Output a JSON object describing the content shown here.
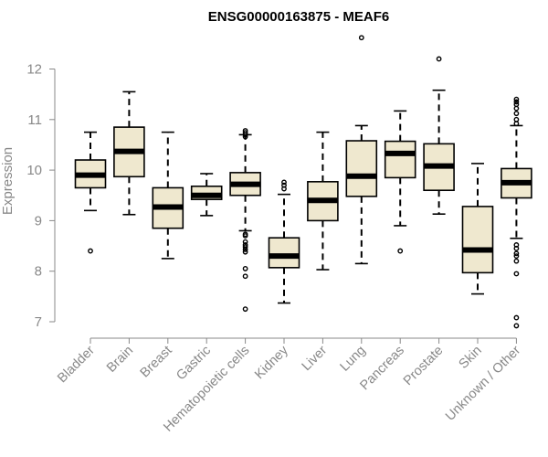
{
  "chart_data": {
    "type": "boxplot",
    "title": "ENSG00000163875 - MEAF6",
    "xlabel": "",
    "ylabel": "Expression",
    "ylim": [
      6.8,
      12.8
    ],
    "yticks": [
      7,
      8,
      9,
      10,
      11,
      12
    ],
    "categories": [
      "Bladder",
      "Brain",
      "Breast",
      "Gastric",
      "Hematopoietic cells",
      "Kidney",
      "Liver",
      "Lung",
      "Pancreas",
      "Prostate",
      "Skin",
      "Unknown / Other"
    ],
    "boxes": [
      {
        "name": "Bladder",
        "whisker_low": 9.2,
        "q1": 9.65,
        "median": 9.9,
        "q3": 10.2,
        "whisker_high": 10.75,
        "outliers": [
          8.4
        ]
      },
      {
        "name": "Brain",
        "whisker_low": 9.12,
        "q1": 9.87,
        "median": 10.37,
        "q3": 10.85,
        "whisker_high": 11.55,
        "outliers": []
      },
      {
        "name": "Breast",
        "whisker_low": 8.25,
        "q1": 8.85,
        "median": 9.27,
        "q3": 9.65,
        "whisker_high": 10.75,
        "outliers": []
      },
      {
        "name": "Gastric",
        "whisker_low": 9.1,
        "q1": 9.42,
        "median": 9.5,
        "q3": 9.68,
        "whisker_high": 9.93,
        "outliers": []
      },
      {
        "name": "Hematopoietic cells",
        "whisker_low": 8.8,
        "q1": 9.5,
        "median": 9.72,
        "q3": 9.95,
        "whisker_high": 10.7,
        "outliers": [
          10.78,
          10.74,
          10.7,
          10.66,
          8.73,
          8.7,
          8.58,
          8.52,
          8.48,
          8.43,
          8.38,
          8.05,
          7.9,
          7.25
        ]
      },
      {
        "name": "Kidney",
        "whisker_low": 7.37,
        "q1": 8.07,
        "median": 8.3,
        "q3": 8.66,
        "whisker_high": 9.52,
        "outliers": [
          9.76,
          9.7,
          9.63
        ]
      },
      {
        "name": "Liver",
        "whisker_low": 8.03,
        "q1": 9.0,
        "median": 9.4,
        "q3": 9.77,
        "whisker_high": 10.75,
        "outliers": []
      },
      {
        "name": "Lung",
        "whisker_low": 8.15,
        "q1": 9.48,
        "median": 9.88,
        "q3": 10.58,
        "whisker_high": 10.88,
        "outliers": [
          12.62
        ]
      },
      {
        "name": "Pancreas",
        "whisker_low": 8.9,
        "q1": 9.85,
        "median": 10.33,
        "q3": 10.57,
        "whisker_high": 11.17,
        "outliers": [
          8.4
        ]
      },
      {
        "name": "Prostate",
        "whisker_low": 9.13,
        "q1": 9.6,
        "median": 10.08,
        "q3": 10.52,
        "whisker_high": 11.58,
        "outliers": [
          12.2
        ]
      },
      {
        "name": "Skin",
        "whisker_low": 7.55,
        "q1": 7.97,
        "median": 8.42,
        "q3": 9.28,
        "whisker_high": 10.13,
        "outliers": []
      },
      {
        "name": "Unknown / Other",
        "whisker_low": 8.65,
        "q1": 9.45,
        "median": 9.75,
        "q3": 10.03,
        "whisker_high": 10.88,
        "outliers": [
          11.4,
          11.35,
          11.3,
          11.22,
          11.12,
          11.0,
          10.92,
          8.52,
          8.45,
          8.35,
          8.3,
          8.2,
          7.95,
          7.08,
          6.92
        ]
      }
    ]
  }
}
